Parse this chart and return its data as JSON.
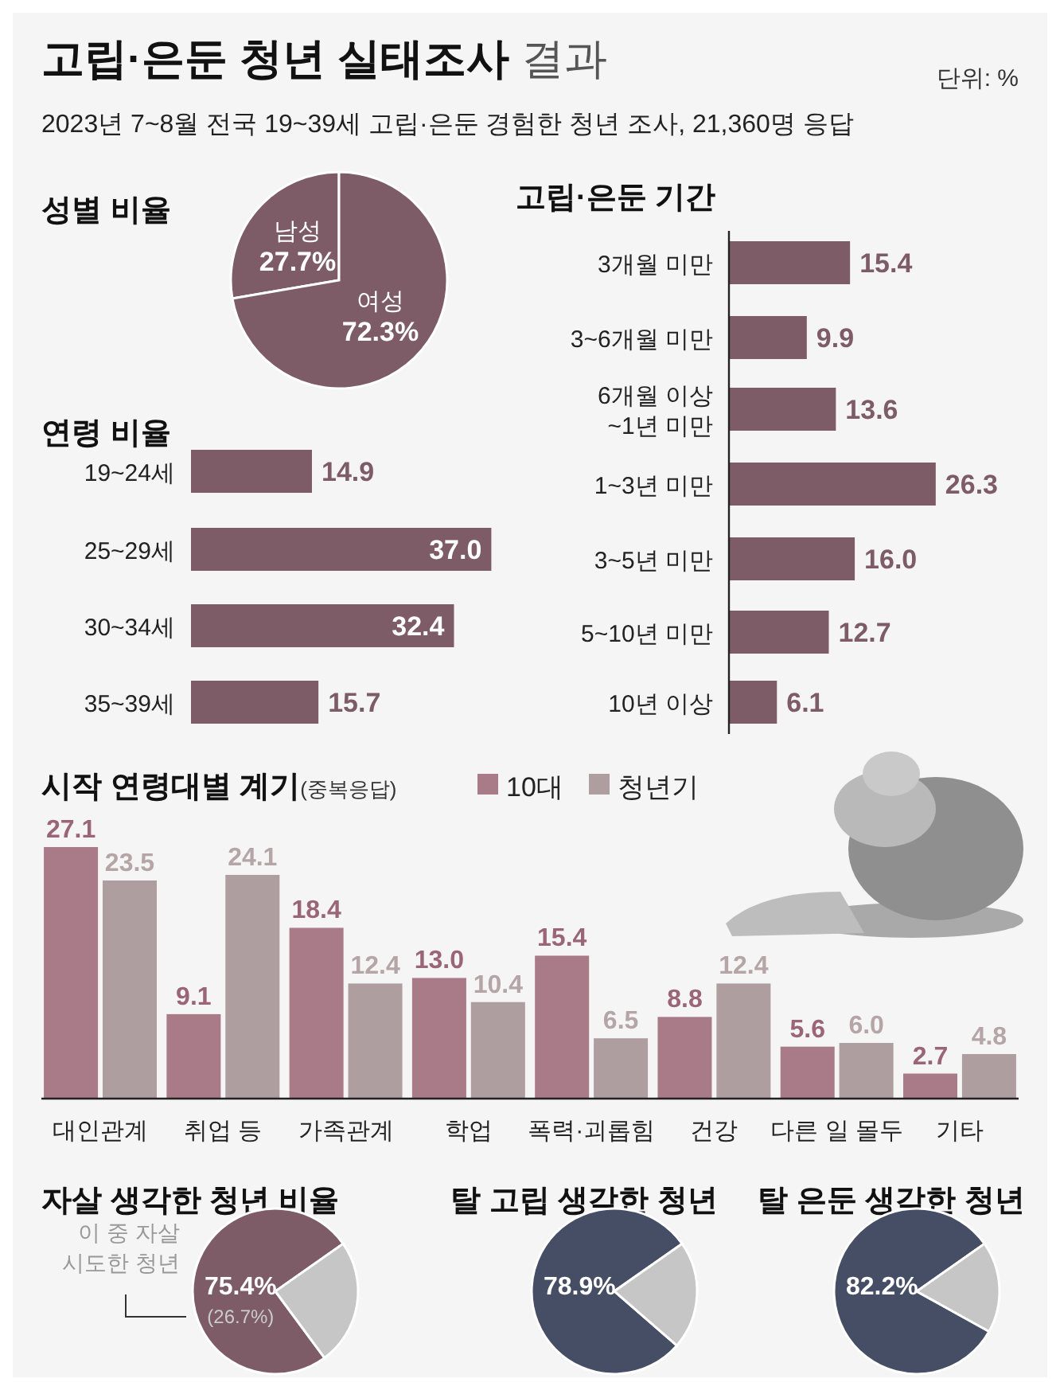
{
  "chart_data": [
    {
      "type": "other",
      "title": "고립·은둔 청년 실태조사 결과",
      "subtitle": "2023년 7~8월 전국 19~39세 고립·은둔 경험한 청년 조사, 21,360명 응답",
      "annotations": [
        "단위: %"
      ]
    },
    {
      "type": "pie",
      "title": "성별 비율",
      "categories": [
        "남성",
        "여성"
      ],
      "values": [
        27.7,
        72.3
      ],
      "colors": [
        "#7d5c68",
        "#7d5c68"
      ],
      "value_labels": [
        "27.7%",
        "72.3%"
      ]
    },
    {
      "type": "bar",
      "orientation": "horizontal",
      "title": "연령 비율",
      "categories": [
        "19~24세",
        "25~29세",
        "30~34세",
        "35~39세"
      ],
      "values": [
        14.9,
        37.0,
        32.4,
        15.7
      ],
      "color": "#7d5c68",
      "value_labels": [
        "14.9",
        "37.0",
        "32.4",
        "15.7"
      ]
    },
    {
      "type": "bar",
      "orientation": "horizontal",
      "title": "고립·은둔 기간",
      "categories": [
        "3개월 미만",
        "3~6개월 미만",
        "6개월 이상 ~1년 미만",
        "1~3년 미만",
        "3~5년 미만",
        "5~10년 미만",
        "10년 이상"
      ],
      "values": [
        15.4,
        9.9,
        13.6,
        26.3,
        16.0,
        12.7,
        6.1
      ],
      "color": "#7d5c68",
      "value_labels": [
        "15.4",
        "9.9",
        "13.6",
        "26.3",
        "16.0",
        "12.7",
        "6.1"
      ]
    },
    {
      "type": "bar",
      "title": "시작 연령대별 계기",
      "subtitle": "(중복응답)",
      "legend": "top",
      "categories": [
        "대인관계",
        "취업 등",
        "가족관계",
        "학업",
        "폭력·괴롭힘",
        "건강",
        "다른 일 몰두",
        "기타"
      ],
      "series": [
        {
          "name": "10대",
          "color": "#a97b89",
          "values": [
            27.1,
            9.1,
            18.4,
            13.0,
            15.4,
            8.8,
            5.6,
            2.7
          ],
          "value_labels": [
            "27.1",
            "9.1",
            "18.4",
            "13.0",
            "15.4",
            "8.8",
            "5.6",
            "2.7"
          ]
        },
        {
          "name": "청년기",
          "color": "#ae9e9f",
          "values": [
            23.5,
            24.1,
            12.4,
            10.4,
            6.5,
            12.4,
            6.0,
            4.8
          ],
          "value_labels": [
            "23.5",
            "24.1",
            "12.4",
            "10.4",
            "6.5",
            "12.4",
            "6.0",
            "4.8"
          ]
        }
      ]
    },
    {
      "type": "pie",
      "title": "자살 생각한 청년 비율",
      "categories": [
        null,
        null
      ],
      "values": [
        75.4,
        24.6
      ],
      "colors": [
        "#7d5c68",
        "#c6c6c6"
      ],
      "value_labels": [
        "75.4%",
        null
      ],
      "annotations": [
        "이 중 자살 시도한 청년",
        "(26.7%)"
      ]
    },
    {
      "type": "pie",
      "title": "탈 고립 생각한 청년",
      "categories": [
        null,
        null
      ],
      "values": [
        78.9,
        21.1
      ],
      "colors": [
        "#464e66",
        "#c6c6c6"
      ],
      "value_labels": [
        "78.9%",
        null
      ]
    },
    {
      "type": "pie",
      "title": "탈 은둔 생각한 청년",
      "categories": [
        null,
        null
      ],
      "values": [
        82.2,
        17.8
      ],
      "colors": [
        "#464e66",
        "#c6c6c6"
      ],
      "value_labels": [
        "82.2%",
        null
      ]
    }
  ]
}
